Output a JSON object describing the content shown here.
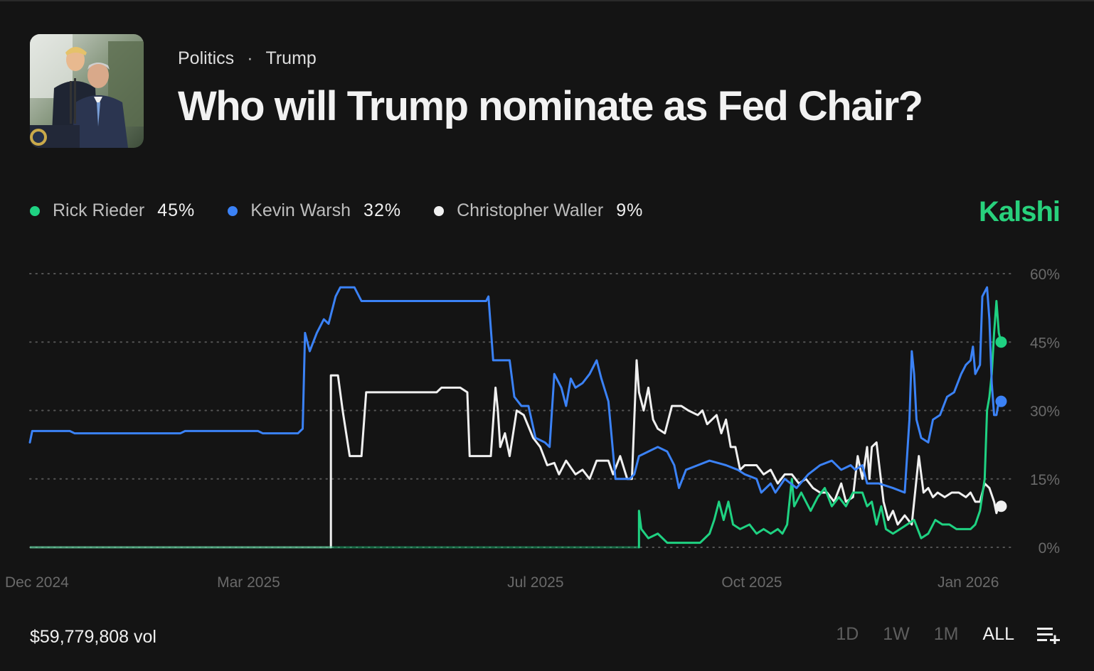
{
  "header": {
    "breadcrumb": [
      "Politics",
      "Trump"
    ],
    "title": "Who will Trump nominate as Fed Chair?",
    "thumbnail_icon": "trump-powell-photo"
  },
  "brand": {
    "name": "Kalshi",
    "color": "#28d17c"
  },
  "legend": [
    {
      "name": "Rick Rieder",
      "value": "45%",
      "color": "#1fd282"
    },
    {
      "name": "Kevin Warsh",
      "value": "32%",
      "color": "#3b82f6"
    },
    {
      "name": "Christopher Waller",
      "value": "9%",
      "color": "#f0f0f0"
    }
  ],
  "footer": {
    "volume": "$59,779,808 vol",
    "ranges": [
      "1D",
      "1W",
      "1M",
      "ALL"
    ],
    "active_range": "ALL",
    "menu_icon": "list-add-icon"
  },
  "chart_data": {
    "type": "line",
    "x_type": "date",
    "xlim": [
      "2024-11-28",
      "2026-01-20"
    ],
    "ylim": [
      0,
      60
    ],
    "y_ticks": [
      "0%",
      "15%",
      "30%",
      "45%",
      "60%"
    ],
    "x_ticks": [
      {
        "label": "Dec 2024",
        "date": "2024-12-01"
      },
      {
        "label": "Mar 2025",
        "date": "2025-03-01"
      },
      {
        "label": "Jul 2025",
        "date": "2025-07-01"
      },
      {
        "label": "Oct 2025",
        "date": "2025-10-01"
      },
      {
        "label": "Jan 2026",
        "date": "2026-01-01"
      }
    ],
    "grid": true,
    "series": [
      {
        "name": "Christopher Waller",
        "color": "#f0f0f0",
        "points": [
          [
            "2024-11-28",
            0
          ],
          [
            "2025-04-05",
            0
          ],
          [
            "2025-04-05",
            37.7
          ],
          [
            "2025-04-08",
            37.7
          ],
          [
            "2025-04-10",
            30
          ],
          [
            "2025-04-13",
            20
          ],
          [
            "2025-04-18",
            20
          ],
          [
            "2025-04-20",
            34
          ],
          [
            "2025-05-01",
            34
          ],
          [
            "2025-05-20",
            34
          ],
          [
            "2025-05-22",
            35
          ],
          [
            "2025-05-30",
            35
          ],
          [
            "2025-06-02",
            34
          ],
          [
            "2025-06-03",
            20
          ],
          [
            "2025-06-12",
            20
          ],
          [
            "2025-06-14",
            35
          ],
          [
            "2025-06-15",
            30
          ],
          [
            "2025-06-16",
            22
          ],
          [
            "2025-06-18",
            25
          ],
          [
            "2025-06-20",
            20
          ],
          [
            "2025-06-23",
            30
          ],
          [
            "2025-06-26",
            29
          ],
          [
            "2025-06-30",
            24
          ],
          [
            "2025-07-03",
            22
          ],
          [
            "2025-07-06",
            18
          ],
          [
            "2025-07-09",
            18.5
          ],
          [
            "2025-07-11",
            16
          ],
          [
            "2025-07-14",
            19
          ],
          [
            "2025-07-18",
            16
          ],
          [
            "2025-07-21",
            17
          ],
          [
            "2025-07-24",
            15
          ],
          [
            "2025-07-27",
            19
          ],
          [
            "2025-08-01",
            19
          ],
          [
            "2025-08-03",
            16
          ],
          [
            "2025-08-06",
            20
          ],
          [
            "2025-08-09",
            15
          ],
          [
            "2025-08-11",
            15
          ],
          [
            "2025-08-13",
            41
          ],
          [
            "2025-08-14",
            34
          ],
          [
            "2025-08-16",
            30
          ],
          [
            "2025-08-18",
            35
          ],
          [
            "2025-08-20",
            28
          ],
          [
            "2025-08-22",
            26
          ],
          [
            "2025-08-25",
            25
          ],
          [
            "2025-08-28",
            31
          ],
          [
            "2025-09-01",
            31
          ],
          [
            "2025-09-04",
            30
          ],
          [
            "2025-09-08",
            29
          ],
          [
            "2025-09-10",
            30
          ],
          [
            "2025-09-12",
            27
          ],
          [
            "2025-09-16",
            29
          ],
          [
            "2025-09-18",
            25
          ],
          [
            "2025-09-20",
            28
          ],
          [
            "2025-09-22",
            22
          ],
          [
            "2025-09-24",
            22
          ],
          [
            "2025-09-26",
            17
          ],
          [
            "2025-09-28",
            18
          ],
          [
            "2025-10-01",
            18
          ],
          [
            "2025-10-03",
            18
          ],
          [
            "2025-10-06",
            16
          ],
          [
            "2025-10-09",
            17
          ],
          [
            "2025-10-12",
            14
          ],
          [
            "2025-10-15",
            16
          ],
          [
            "2025-10-18",
            16
          ],
          [
            "2025-10-21",
            14
          ],
          [
            "2025-10-24",
            15
          ],
          [
            "2025-10-27",
            13
          ],
          [
            "2025-10-30",
            12
          ],
          [
            "2025-11-02",
            12
          ],
          [
            "2025-11-05",
            10
          ],
          [
            "2025-11-08",
            14
          ],
          [
            "2025-11-10",
            10
          ],
          [
            "2025-11-13",
            11
          ],
          [
            "2025-11-15",
            20
          ],
          [
            "2025-11-17",
            15
          ],
          [
            "2025-11-19",
            22
          ],
          [
            "2025-11-20",
            15
          ],
          [
            "2025-11-21",
            22
          ],
          [
            "2025-11-23",
            23
          ],
          [
            "2025-11-26",
            10
          ],
          [
            "2025-11-28",
            6
          ],
          [
            "2025-11-30",
            8
          ],
          [
            "2025-12-02",
            5
          ],
          [
            "2025-12-05",
            7
          ],
          [
            "2025-12-08",
            5
          ],
          [
            "2025-12-11",
            20
          ],
          [
            "2025-12-13",
            12
          ],
          [
            "2025-12-15",
            13
          ],
          [
            "2025-12-17",
            11
          ],
          [
            "2025-12-19",
            12
          ],
          [
            "2025-12-22",
            11
          ],
          [
            "2025-12-25",
            12
          ],
          [
            "2025-12-28",
            12
          ],
          [
            "2025-12-31",
            11
          ],
          [
            "2026-01-02",
            12
          ],
          [
            "2026-01-04",
            10
          ],
          [
            "2026-01-06",
            10
          ],
          [
            "2026-01-08",
            14
          ],
          [
            "2026-01-10",
            13
          ],
          [
            "2026-01-12",
            10
          ],
          [
            "2026-01-13",
            7.5
          ],
          [
            "2026-01-14",
            9.5
          ],
          [
            "2026-01-15",
            9
          ]
        ]
      },
      {
        "name": "Rick Rieder",
        "color": "#1fd282",
        "points": [
          [
            "2024-11-28",
            0
          ],
          [
            "2025-08-14",
            0
          ],
          [
            "2025-08-14",
            8
          ],
          [
            "2025-08-15",
            4
          ],
          [
            "2025-08-18",
            2
          ],
          [
            "2025-08-22",
            3
          ],
          [
            "2025-08-26",
            1
          ],
          [
            "2025-09-02",
            1
          ],
          [
            "2025-09-09",
            1
          ],
          [
            "2025-09-13",
            3
          ],
          [
            "2025-09-15",
            6
          ],
          [
            "2025-09-17",
            10
          ],
          [
            "2025-09-19",
            6
          ],
          [
            "2025-09-21",
            10
          ],
          [
            "2025-09-23",
            5
          ],
          [
            "2025-09-26",
            4
          ],
          [
            "2025-09-30",
            5
          ],
          [
            "2025-10-03",
            3
          ],
          [
            "2025-10-06",
            4
          ],
          [
            "2025-10-09",
            3
          ],
          [
            "2025-10-12",
            4
          ],
          [
            "2025-10-14",
            3
          ],
          [
            "2025-10-16",
            5
          ],
          [
            "2025-10-18",
            15
          ],
          [
            "2025-10-19",
            9
          ],
          [
            "2025-10-22",
            12
          ],
          [
            "2025-10-26",
            8
          ],
          [
            "2025-10-29",
            11
          ],
          [
            "2025-11-01",
            13
          ],
          [
            "2025-11-04",
            9
          ],
          [
            "2025-11-07",
            11
          ],
          [
            "2025-11-10",
            9
          ],
          [
            "2025-11-13",
            12
          ],
          [
            "2025-11-17",
            12
          ],
          [
            "2025-11-19",
            9
          ],
          [
            "2025-11-21",
            10
          ],
          [
            "2025-11-23",
            5
          ],
          [
            "2025-11-25",
            9
          ],
          [
            "2025-11-27",
            4
          ],
          [
            "2025-11-30",
            3
          ],
          [
            "2025-12-03",
            4
          ],
          [
            "2025-12-06",
            5
          ],
          [
            "2025-12-09",
            6
          ],
          [
            "2025-12-12",
            2
          ],
          [
            "2025-12-15",
            3
          ],
          [
            "2025-12-18",
            6
          ],
          [
            "2025-12-21",
            5
          ],
          [
            "2025-12-24",
            5
          ],
          [
            "2025-12-27",
            4
          ],
          [
            "2025-12-30",
            4
          ],
          [
            "2026-01-02",
            4
          ],
          [
            "2026-01-04",
            5
          ],
          [
            "2026-01-06",
            8
          ],
          [
            "2026-01-08",
            15
          ],
          [
            "2026-01-09",
            30
          ],
          [
            "2026-01-10",
            33
          ],
          [
            "2026-01-11",
            38
          ],
          [
            "2026-01-12",
            47
          ],
          [
            "2026-01-13",
            54
          ],
          [
            "2026-01-14",
            47
          ],
          [
            "2026-01-15",
            45
          ]
        ]
      },
      {
        "name": "Kevin Warsh",
        "color": "#3b82f6",
        "points": [
          [
            "2024-11-28",
            23
          ],
          [
            "2024-11-29",
            25.5
          ],
          [
            "2024-12-15",
            25.5
          ],
          [
            "2024-12-17",
            25
          ],
          [
            "2025-01-31",
            25
          ],
          [
            "2025-02-02",
            25.5
          ],
          [
            "2025-03-05",
            25.5
          ],
          [
            "2025-03-07",
            25
          ],
          [
            "2025-03-22",
            25
          ],
          [
            "2025-03-24",
            26
          ],
          [
            "2025-03-25",
            47
          ],
          [
            "2025-03-27",
            43
          ],
          [
            "2025-03-30",
            47
          ],
          [
            "2025-04-02",
            50
          ],
          [
            "2025-04-04",
            49
          ],
          [
            "2025-04-07",
            55
          ],
          [
            "2025-04-09",
            57
          ],
          [
            "2025-04-15",
            57
          ],
          [
            "2025-04-18",
            54
          ],
          [
            "2025-06-10",
            54
          ],
          [
            "2025-06-11",
            55
          ],
          [
            "2025-06-13",
            41
          ],
          [
            "2025-06-20",
            41
          ],
          [
            "2025-06-22",
            33
          ],
          [
            "2025-06-25",
            31
          ],
          [
            "2025-06-28",
            31
          ],
          [
            "2025-07-01",
            24
          ],
          [
            "2025-07-05",
            23
          ],
          [
            "2025-07-07",
            22
          ],
          [
            "2025-07-09",
            38
          ],
          [
            "2025-07-12",
            35
          ],
          [
            "2025-07-14",
            31
          ],
          [
            "2025-07-16",
            37
          ],
          [
            "2025-07-18",
            35
          ],
          [
            "2025-07-21",
            36
          ],
          [
            "2025-07-24",
            38
          ],
          [
            "2025-07-27",
            41
          ],
          [
            "2025-07-29",
            37
          ],
          [
            "2025-08-01",
            32
          ],
          [
            "2025-08-04",
            15
          ],
          [
            "2025-08-10",
            15
          ],
          [
            "2025-08-12",
            16
          ],
          [
            "2025-08-14",
            20
          ],
          [
            "2025-08-18",
            21
          ],
          [
            "2025-08-22",
            22
          ],
          [
            "2025-08-26",
            21
          ],
          [
            "2025-08-29",
            18
          ],
          [
            "2025-08-31",
            13
          ],
          [
            "2025-09-03",
            17
          ],
          [
            "2025-09-08",
            18
          ],
          [
            "2025-09-13",
            19
          ],
          [
            "2025-09-20",
            18
          ],
          [
            "2025-09-25",
            17
          ],
          [
            "2025-09-28",
            16
          ],
          [
            "2025-10-03",
            15
          ],
          [
            "2025-10-05",
            12
          ],
          [
            "2025-10-09",
            14
          ],
          [
            "2025-10-11",
            12
          ],
          [
            "2025-10-15",
            15
          ],
          [
            "2025-10-20",
            13
          ],
          [
            "2025-10-25",
            16
          ],
          [
            "2025-10-30",
            18
          ],
          [
            "2025-11-04",
            19
          ],
          [
            "2025-11-08",
            17
          ],
          [
            "2025-11-12",
            18
          ],
          [
            "2025-11-14",
            17
          ],
          [
            "2025-11-17",
            18
          ],
          [
            "2025-11-19",
            14
          ],
          [
            "2025-11-24",
            14
          ],
          [
            "2025-11-30",
            13
          ],
          [
            "2025-12-05",
            12
          ],
          [
            "2025-12-07",
            28
          ],
          [
            "2025-12-08",
            43
          ],
          [
            "2025-12-09",
            38
          ],
          [
            "2025-12-10",
            28
          ],
          [
            "2025-12-12",
            24
          ],
          [
            "2025-12-15",
            23
          ],
          [
            "2025-12-17",
            28
          ],
          [
            "2025-12-20",
            29
          ],
          [
            "2025-12-23",
            33
          ],
          [
            "2025-12-26",
            34
          ],
          [
            "2025-12-29",
            38
          ],
          [
            "2025-12-31",
            40
          ],
          [
            "2026-01-02",
            41
          ],
          [
            "2026-01-03",
            44
          ],
          [
            "2026-01-04",
            38
          ],
          [
            "2026-01-06",
            40
          ],
          [
            "2026-01-07",
            55
          ],
          [
            "2026-01-08",
            56
          ],
          [
            "2026-01-09",
            57
          ],
          [
            "2026-01-10",
            50
          ],
          [
            "2026-01-11",
            36
          ],
          [
            "2026-01-12",
            29
          ],
          [
            "2026-01-13",
            29
          ],
          [
            "2026-01-14",
            32
          ],
          [
            "2026-01-15",
            32
          ]
        ]
      }
    ]
  }
}
